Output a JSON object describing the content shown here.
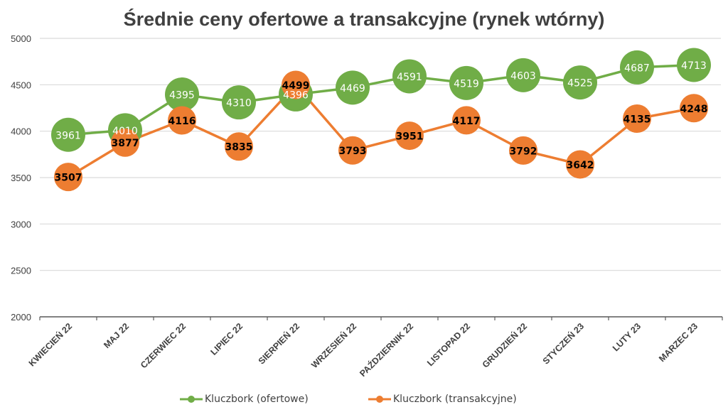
{
  "chart_data": {
    "type": "line",
    "title": "Średnie ceny ofertowe a transakcyjne (rynek wtórny)",
    "xlabel": "",
    "ylabel": "",
    "ylim": [
      2000,
      5000
    ],
    "yticks": [
      "2000",
      "2500",
      "3000",
      "3500",
      "4000",
      "4500",
      "5000"
    ],
    "ytick_values": [
      2000,
      2500,
      3000,
      3500,
      4000,
      4500,
      5000
    ],
    "grid": true,
    "legend_position": "bottom",
    "categories": [
      "KWIECIEŃ 22",
      "MAJ 22",
      "CZERWIEC 22",
      "LIPIEC 22",
      "SIERPIEŃ 22",
      "WRZESIEŃ 22",
      "PAŹDZIERNIK 22",
      "LISTOPAD 22",
      "GRUDZIEŃ 22",
      "STYCZEŃ 23",
      "LUTY 23",
      "MARZEC 23"
    ],
    "series": [
      {
        "name": "Kluczbork (ofertowe)",
        "color": "#70AD47",
        "label_color": "#ffffff",
        "values": [
          3961,
          4010,
          4395,
          4310,
          4396,
          4469,
          4591,
          4519,
          4603,
          4525,
          4687,
          4713
        ]
      },
      {
        "name": "Kluczbork (transakcyjne)",
        "color": "#ED7D31",
        "label_color": "#000000",
        "values": [
          3507,
          3877,
          4116,
          3835,
          4499,
          3793,
          3951,
          4117,
          3792,
          3642,
          4135,
          4248
        ]
      }
    ]
  }
}
